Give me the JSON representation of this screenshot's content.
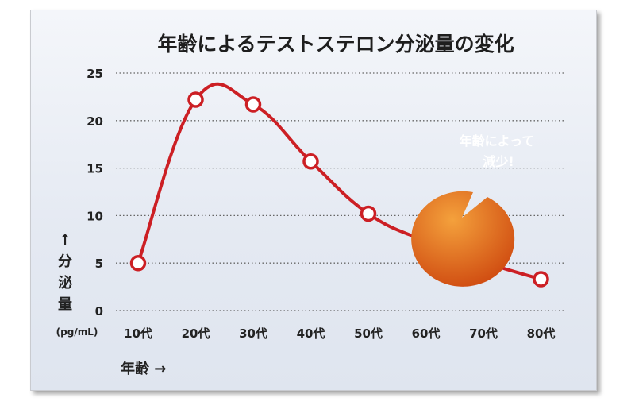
{
  "chart_data": {
    "type": "line",
    "title": "年齢によるテストステロン分泌量の変化",
    "categories": [
      "10代",
      "20代",
      "30代",
      "40代",
      "50代",
      "60代",
      "70代",
      "80代"
    ],
    "values": [
      5,
      22.2,
      21.7,
      15.7,
      10.2,
      7.3,
      5.1,
      3.3
    ],
    "ylim": [
      0,
      25
    ],
    "yticks": [
      "0",
      "5",
      "10",
      "15",
      "20",
      "25"
    ],
    "ylabel": {
      "arrow": "↑",
      "chars": [
        "分",
        "泌",
        "量"
      ],
      "unit": "(pg/mL)"
    },
    "xlabel": "年齢 →",
    "grid": true,
    "annotation": [
      "年齢によって",
      "減少!"
    ]
  },
  "colors": {
    "line": "#cc1f24",
    "marker_fill": "#ffffff",
    "bubble_light": "#f4a13c",
    "bubble_dark": "#cf4a10",
    "grid": "#666666"
  }
}
